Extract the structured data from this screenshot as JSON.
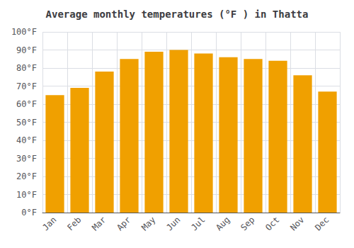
{
  "chart_data": {
    "type": "bar",
    "title": "Average monthly temperatures (°F ) in Thatta",
    "categories": [
      "Jan",
      "Feb",
      "Mar",
      "Apr",
      "May",
      "Jun",
      "Jul",
      "Aug",
      "Sep",
      "Oct",
      "Nov",
      "Dec"
    ],
    "values": [
      65,
      69,
      78,
      85,
      89,
      90,
      88,
      86,
      85,
      84,
      76,
      67
    ],
    "color": "#F0A000",
    "ylim": [
      0,
      100
    ],
    "yticks": [
      {
        "value": 0,
        "label": "0°F"
      },
      {
        "value": 10,
        "label": "10°F"
      },
      {
        "value": 20,
        "label": "20°F"
      },
      {
        "value": 30,
        "label": "30°F"
      },
      {
        "value": 40,
        "label": "40°F"
      },
      {
        "value": 50,
        "label": "50°F"
      },
      {
        "value": 60,
        "label": "60°F"
      },
      {
        "value": 70,
        "label": "70°F"
      },
      {
        "value": 80,
        "label": "80°F"
      },
      {
        "value": 90,
        "label": "90°F"
      },
      {
        "value": 100,
        "label": "100°F"
      }
    ],
    "grid": true
  }
}
